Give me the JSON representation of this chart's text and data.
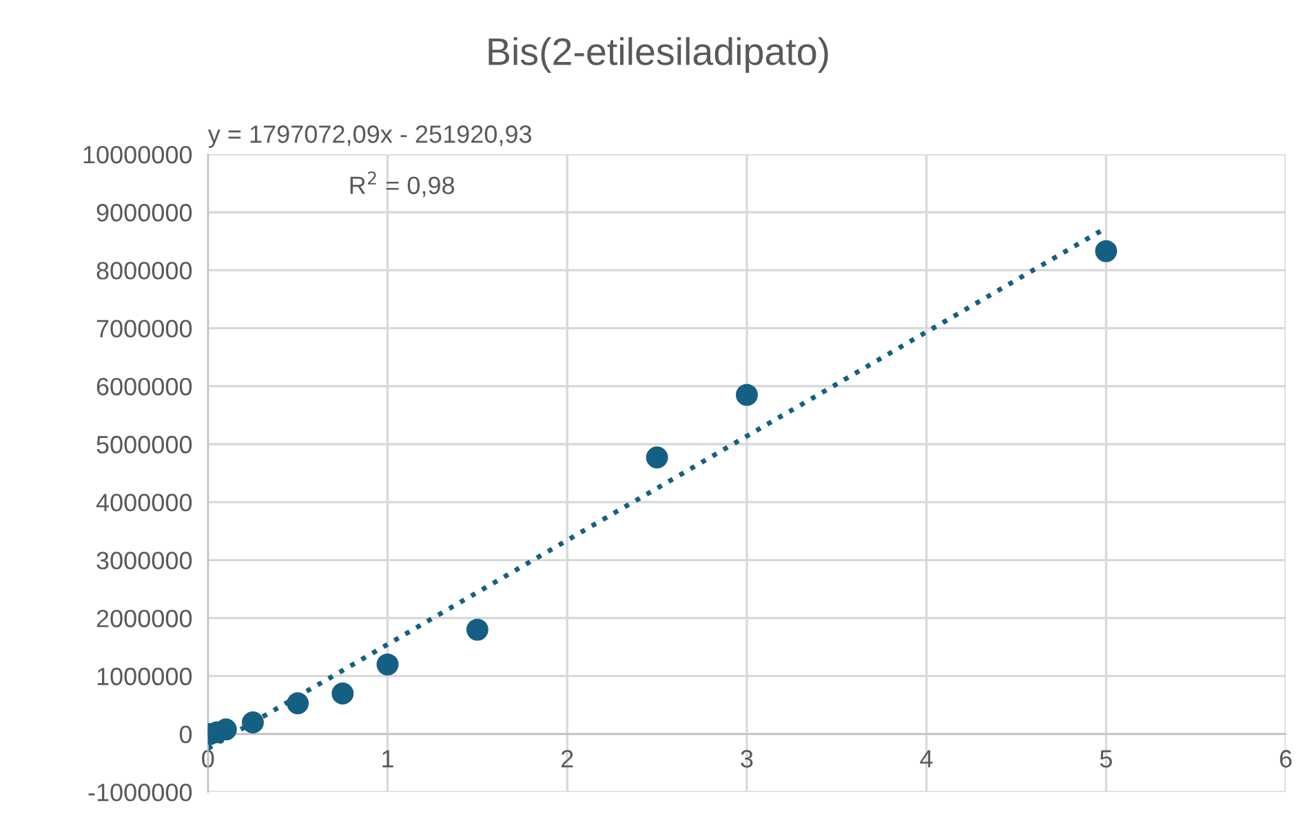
{
  "chart_data": {
    "type": "scatter",
    "title": "Bis(2-etilesiladipato)",
    "series": [
      {
        "color": "#156082",
        "marker": "circle",
        "x": [
          0.01,
          0.05,
          0.1,
          0.25,
          0.5,
          0.75,
          1,
          1.5,
          2.5,
          3,
          5
        ],
        "values": [
          0,
          30000,
          80000,
          200000,
          530000,
          700000,
          1200000,
          1800000,
          4770000,
          5850000,
          8330000
        ]
      },
      {
        "type": "line",
        "color": "#156082",
        "line_style": "dotted",
        "marker": "none",
        "x": [
          0,
          5
        ],
        "values": [
          -250000,
          8730000
        ]
      }
    ],
    "annotations": [
      "y = 1797072,09x - 251920,93",
      "R$^{2}$ = 0,98"
    ],
    "xlim": [
      0,
      6
    ],
    "xticks": [
      0,
      1,
      2,
      3,
      4,
      5,
      6
    ],
    "ylim": [
      -1000000,
      10000000
    ],
    "yticks": [
      -1000000,
      0,
      1000000,
      2000000,
      3000000,
      4000000,
      5000000,
      6000000,
      7000000,
      8000000,
      9000000,
      10000000
    ],
    "grid": true
  }
}
